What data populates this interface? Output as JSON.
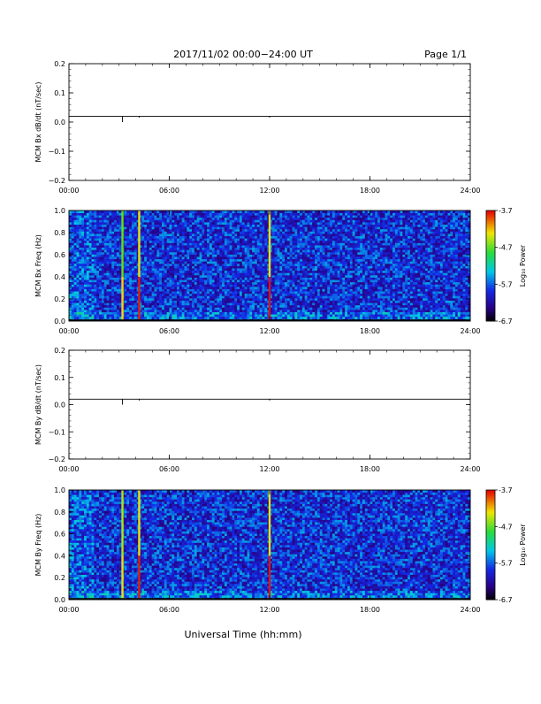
{
  "header": {
    "title": "2017/11/02  00:00−24:00 UT",
    "page": "Page 1/1"
  },
  "footer": {
    "xaxis_title": "Universal Time (hh:mm)"
  },
  "colors": {
    "axis": "#000000",
    "trace": "#000000",
    "background": "#ffffff"
  },
  "chart_data": [
    {
      "type": "line",
      "ylabel": "MCM Bx dB/dt (nT/sec)",
      "x_unit": "hours UT",
      "xlim": [
        0,
        24
      ],
      "ylim": [
        -0.2,
        0.2
      ],
      "xticks": [
        "00:00",
        "06:00",
        "12:00",
        "18:00",
        "24:00"
      ],
      "yticks": [
        "0.2",
        "0.1",
        "0.0",
        "−0.1",
        "−0.2"
      ],
      "ytick_values": [
        0.2,
        0.1,
        0.0,
        -0.1,
        -0.2
      ],
      "baseline": 0.02,
      "spikes": [
        {
          "x": 3.2,
          "y": 0.0
        },
        {
          "x": 4.2,
          "y": 0.015
        },
        {
          "x": 12.0,
          "y": 0.015
        }
      ]
    },
    {
      "type": "heatmap",
      "ylabel": "MCM Bx Freq (Hz)",
      "xlim": [
        0,
        24
      ],
      "ylim": [
        0,
        1.0
      ],
      "xticks": [
        "00:00",
        "06:00",
        "12:00",
        "18:00",
        "24:00"
      ],
      "yticks": [
        "1.0",
        "0.8",
        "0.6",
        "0.4",
        "0.2",
        "0.0"
      ],
      "ytick_values": [
        1.0,
        0.8,
        0.6,
        0.4,
        0.2,
        0.0
      ],
      "colorbar": {
        "label": "Log₁₀ Power",
        "range": [
          -6.7,
          -3.7
        ],
        "ticks": [
          "-3.7",
          "-4.7",
          "-5.7",
          "-6.7"
        ],
        "tick_values": [
          -3.7,
          -4.7,
          -5.7,
          -6.7
        ]
      },
      "typical_power": -5.9,
      "events": [
        {
          "x": 3.2,
          "upper_color": "#66e200",
          "lower_color": "#ffd000"
        },
        {
          "x": 4.2,
          "upper_color": "#f0e000",
          "lower_color": "#e02000"
        },
        {
          "x": 12.0,
          "upper_color": "#f0e000",
          "lower_color": "#e01010"
        }
      ]
    },
    {
      "type": "line",
      "ylabel": "MCM By dB/dt (nT/sec)",
      "x_unit": "hours UT",
      "xlim": [
        0,
        24
      ],
      "ylim": [
        -0.2,
        0.2
      ],
      "xticks": [
        "00:00",
        "06:00",
        "12:00",
        "18:00",
        "24:00"
      ],
      "yticks": [
        "0.2",
        "0.1",
        "0.0",
        "−0.1",
        "−0.2"
      ],
      "ytick_values": [
        0.2,
        0.1,
        0.0,
        -0.1,
        -0.2
      ],
      "baseline": 0.02,
      "spikes": [
        {
          "x": 3.2,
          "y": 0.0
        },
        {
          "x": 4.2,
          "y": 0.015
        },
        {
          "x": 12.0,
          "y": 0.015
        }
      ]
    },
    {
      "type": "heatmap",
      "ylabel": "MCM By Freq (Hz)",
      "xlim": [
        0,
        24
      ],
      "ylim": [
        0,
        1.0
      ],
      "xticks": [
        "00:00",
        "06:00",
        "12:00",
        "18:00",
        "24:00"
      ],
      "yticks": [
        "1.0",
        "0.8",
        "0.6",
        "0.4",
        "0.2",
        "0.0"
      ],
      "ytick_values": [
        1.0,
        0.8,
        0.6,
        0.4,
        0.2,
        0.0
      ],
      "colorbar": {
        "label": "Log₁₀ Power",
        "range": [
          -6.7,
          -3.7
        ],
        "ticks": [
          "-3.7",
          "-4.7",
          "-5.7",
          "-6.7"
        ],
        "tick_values": [
          -3.7,
          -4.7,
          -5.7,
          -6.7
        ]
      },
      "typical_power": -5.9,
      "events": [
        {
          "x": 3.2,
          "upper_color": "#b0e800",
          "lower_color": "#f0e000"
        },
        {
          "x": 4.2,
          "upper_color": "#f0e000",
          "lower_color": "#e02000"
        },
        {
          "x": 12.0,
          "upper_color": "#f0e000",
          "lower_color": "#e01010"
        }
      ]
    }
  ]
}
